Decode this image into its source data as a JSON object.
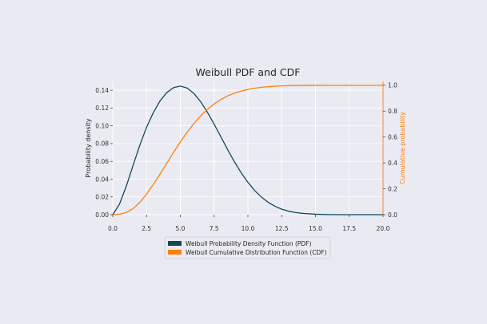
{
  "chart_data": {
    "type": "line",
    "title": "Weibull PDF and CDF",
    "xlabel": "",
    "ylabel_left": "Probability density",
    "ylabel_right": "Cumulative probability",
    "xlim": [
      0,
      20
    ],
    "ylim_left": [
      0,
      0.15
    ],
    "ylim_right": [
      0,
      1.03
    ],
    "xticks": [
      "0.0",
      "2.5",
      "5.0",
      "7.5",
      "10.0",
      "12.5",
      "15.0",
      "17.5",
      "20.0"
    ],
    "yticks_left": [
      "0.00",
      "0.02",
      "0.04",
      "0.06",
      "0.08",
      "0.10",
      "0.12",
      "0.14"
    ],
    "yticks_right": [
      "0.0",
      "0.2",
      "0.4",
      "0.6",
      "0.8",
      "1.0"
    ],
    "grid": true,
    "legend_position": "bottom-center",
    "series": [
      {
        "name": "Weibull Probability Density Function (PDF)",
        "axis": "left",
        "color": "#124a5b",
        "x": [
          0,
          0.5,
          1,
          1.5,
          2,
          2.5,
          3,
          3.5,
          4,
          4.5,
          5,
          5.5,
          6,
          6.5,
          7,
          7.5,
          8,
          8.5,
          9,
          9.5,
          10,
          10.5,
          11,
          11.5,
          12,
          12.5,
          13,
          13.5,
          14,
          15,
          16,
          17,
          18,
          19,
          20
        ],
        "values": [
          0,
          0.0119,
          0.032,
          0.0553,
          0.0781,
          0.0983,
          0.1148,
          0.1281,
          0.1375,
          0.143,
          0.1447,
          0.1426,
          0.1365,
          0.1272,
          0.1154,
          0.1019,
          0.0876,
          0.0733,
          0.0596,
          0.0472,
          0.0364,
          0.0272,
          0.0198,
          0.0139,
          0.0095,
          0.0062,
          0.004,
          0.0025,
          0.0015,
          0.0005,
          0.0001,
          0,
          0,
          0,
          0
        ]
      },
      {
        "name": "Weibull Cumulative Distribution Function (CDF)",
        "axis": "right",
        "color": "#ff7f0e",
        "x": [
          0,
          0.5,
          1,
          1.5,
          2,
          2.5,
          3,
          3.5,
          4,
          4.5,
          5,
          5.5,
          6,
          6.5,
          7,
          7.5,
          8,
          8.5,
          9,
          9.5,
          10,
          10.5,
          11,
          11.5,
          12,
          12.5,
          13,
          13.5,
          14,
          15,
          16,
          17,
          18,
          19,
          20
        ],
        "values": [
          0,
          0.0031,
          0.0165,
          0.0465,
          0.0949,
          0.1587,
          0.2325,
          0.3137,
          0.3975,
          0.4815,
          0.5618,
          0.6366,
          0.7039,
          0.7633,
          0.814,
          0.8561,
          0.8904,
          0.9178,
          0.939,
          0.9553,
          0.9679,
          0.9773,
          0.9843,
          0.9892,
          0.9927,
          0.9952,
          0.9968,
          0.9979,
          0.9987,
          0.9995,
          0.9998,
          1.0,
          1.0,
          1.0,
          1.0
        ]
      }
    ]
  }
}
